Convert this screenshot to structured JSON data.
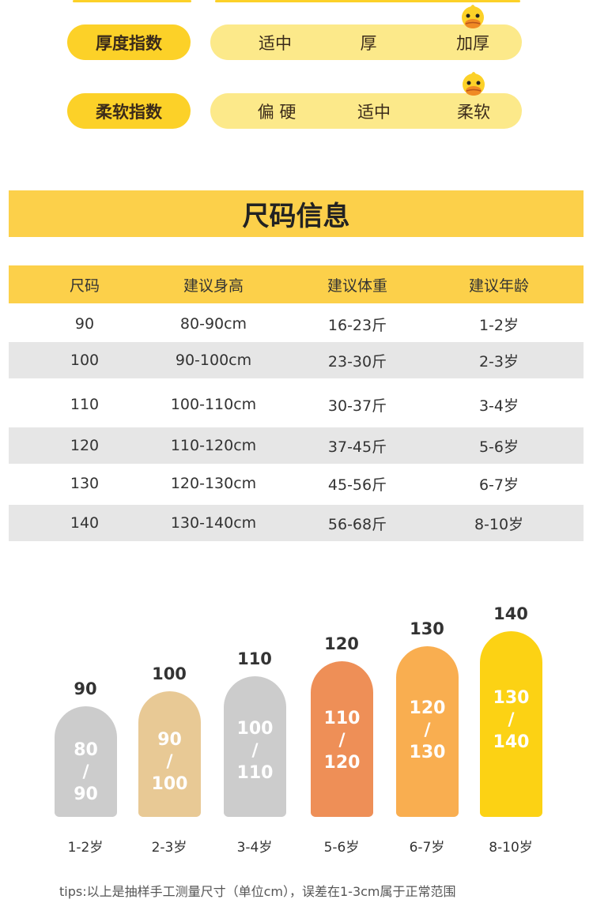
{
  "indices": [
    {
      "label": "厚度指数",
      "options": [
        "适中",
        "厚",
        "加厚"
      ],
      "selected": 2
    },
    {
      "label": "柔软指数",
      "options": [
        "偏 硬",
        "适中",
        "柔软"
      ],
      "selected": 2
    }
  ],
  "section_title": "尺码信息",
  "table": {
    "headers": [
      "尺码",
      "建议身高",
      "建议体重",
      "建议年龄"
    ],
    "rows": [
      [
        "90",
        "80-90cm",
        "16-23斤",
        "1-2岁"
      ],
      [
        "100",
        "90-100cm",
        "23-30斤",
        "2-3岁"
      ],
      [
        "110",
        "100-110cm",
        "30-37斤",
        "3-4岁"
      ],
      [
        "120",
        "110-120cm",
        "37-45斤",
        "5-6岁"
      ],
      [
        "130",
        "120-130cm",
        "45-56斤",
        "6-7岁"
      ],
      [
        "140",
        "130-140cm",
        "56-68斤",
        "8-10岁"
      ]
    ]
  },
  "chart_data": {
    "type": "bar",
    "categories": [
      "1-2岁",
      "2-3岁",
      "3-4岁",
      "5-6岁",
      "6-7岁",
      "8-10岁"
    ],
    "values": [
      90,
      100,
      110,
      120,
      130,
      140
    ],
    "bar_labels": [
      [
        "80",
        "/",
        "90"
      ],
      [
        "90",
        "/",
        "100"
      ],
      [
        "100",
        "/",
        "110"
      ],
      [
        "110",
        "/",
        "120"
      ],
      [
        "120",
        "/",
        "130"
      ],
      [
        "130",
        "/",
        "140"
      ]
    ],
    "colors": [
      "#CCCCCC",
      "#E8C995",
      "#CCCCCC",
      "#EE8F57",
      "#F9AE50",
      "#FCD214"
    ],
    "ylim": [
      0,
      140
    ]
  },
  "tips": "tips:以上是抽样手工测量尺寸（单位cm），误差在1-3cm属于正常范围"
}
